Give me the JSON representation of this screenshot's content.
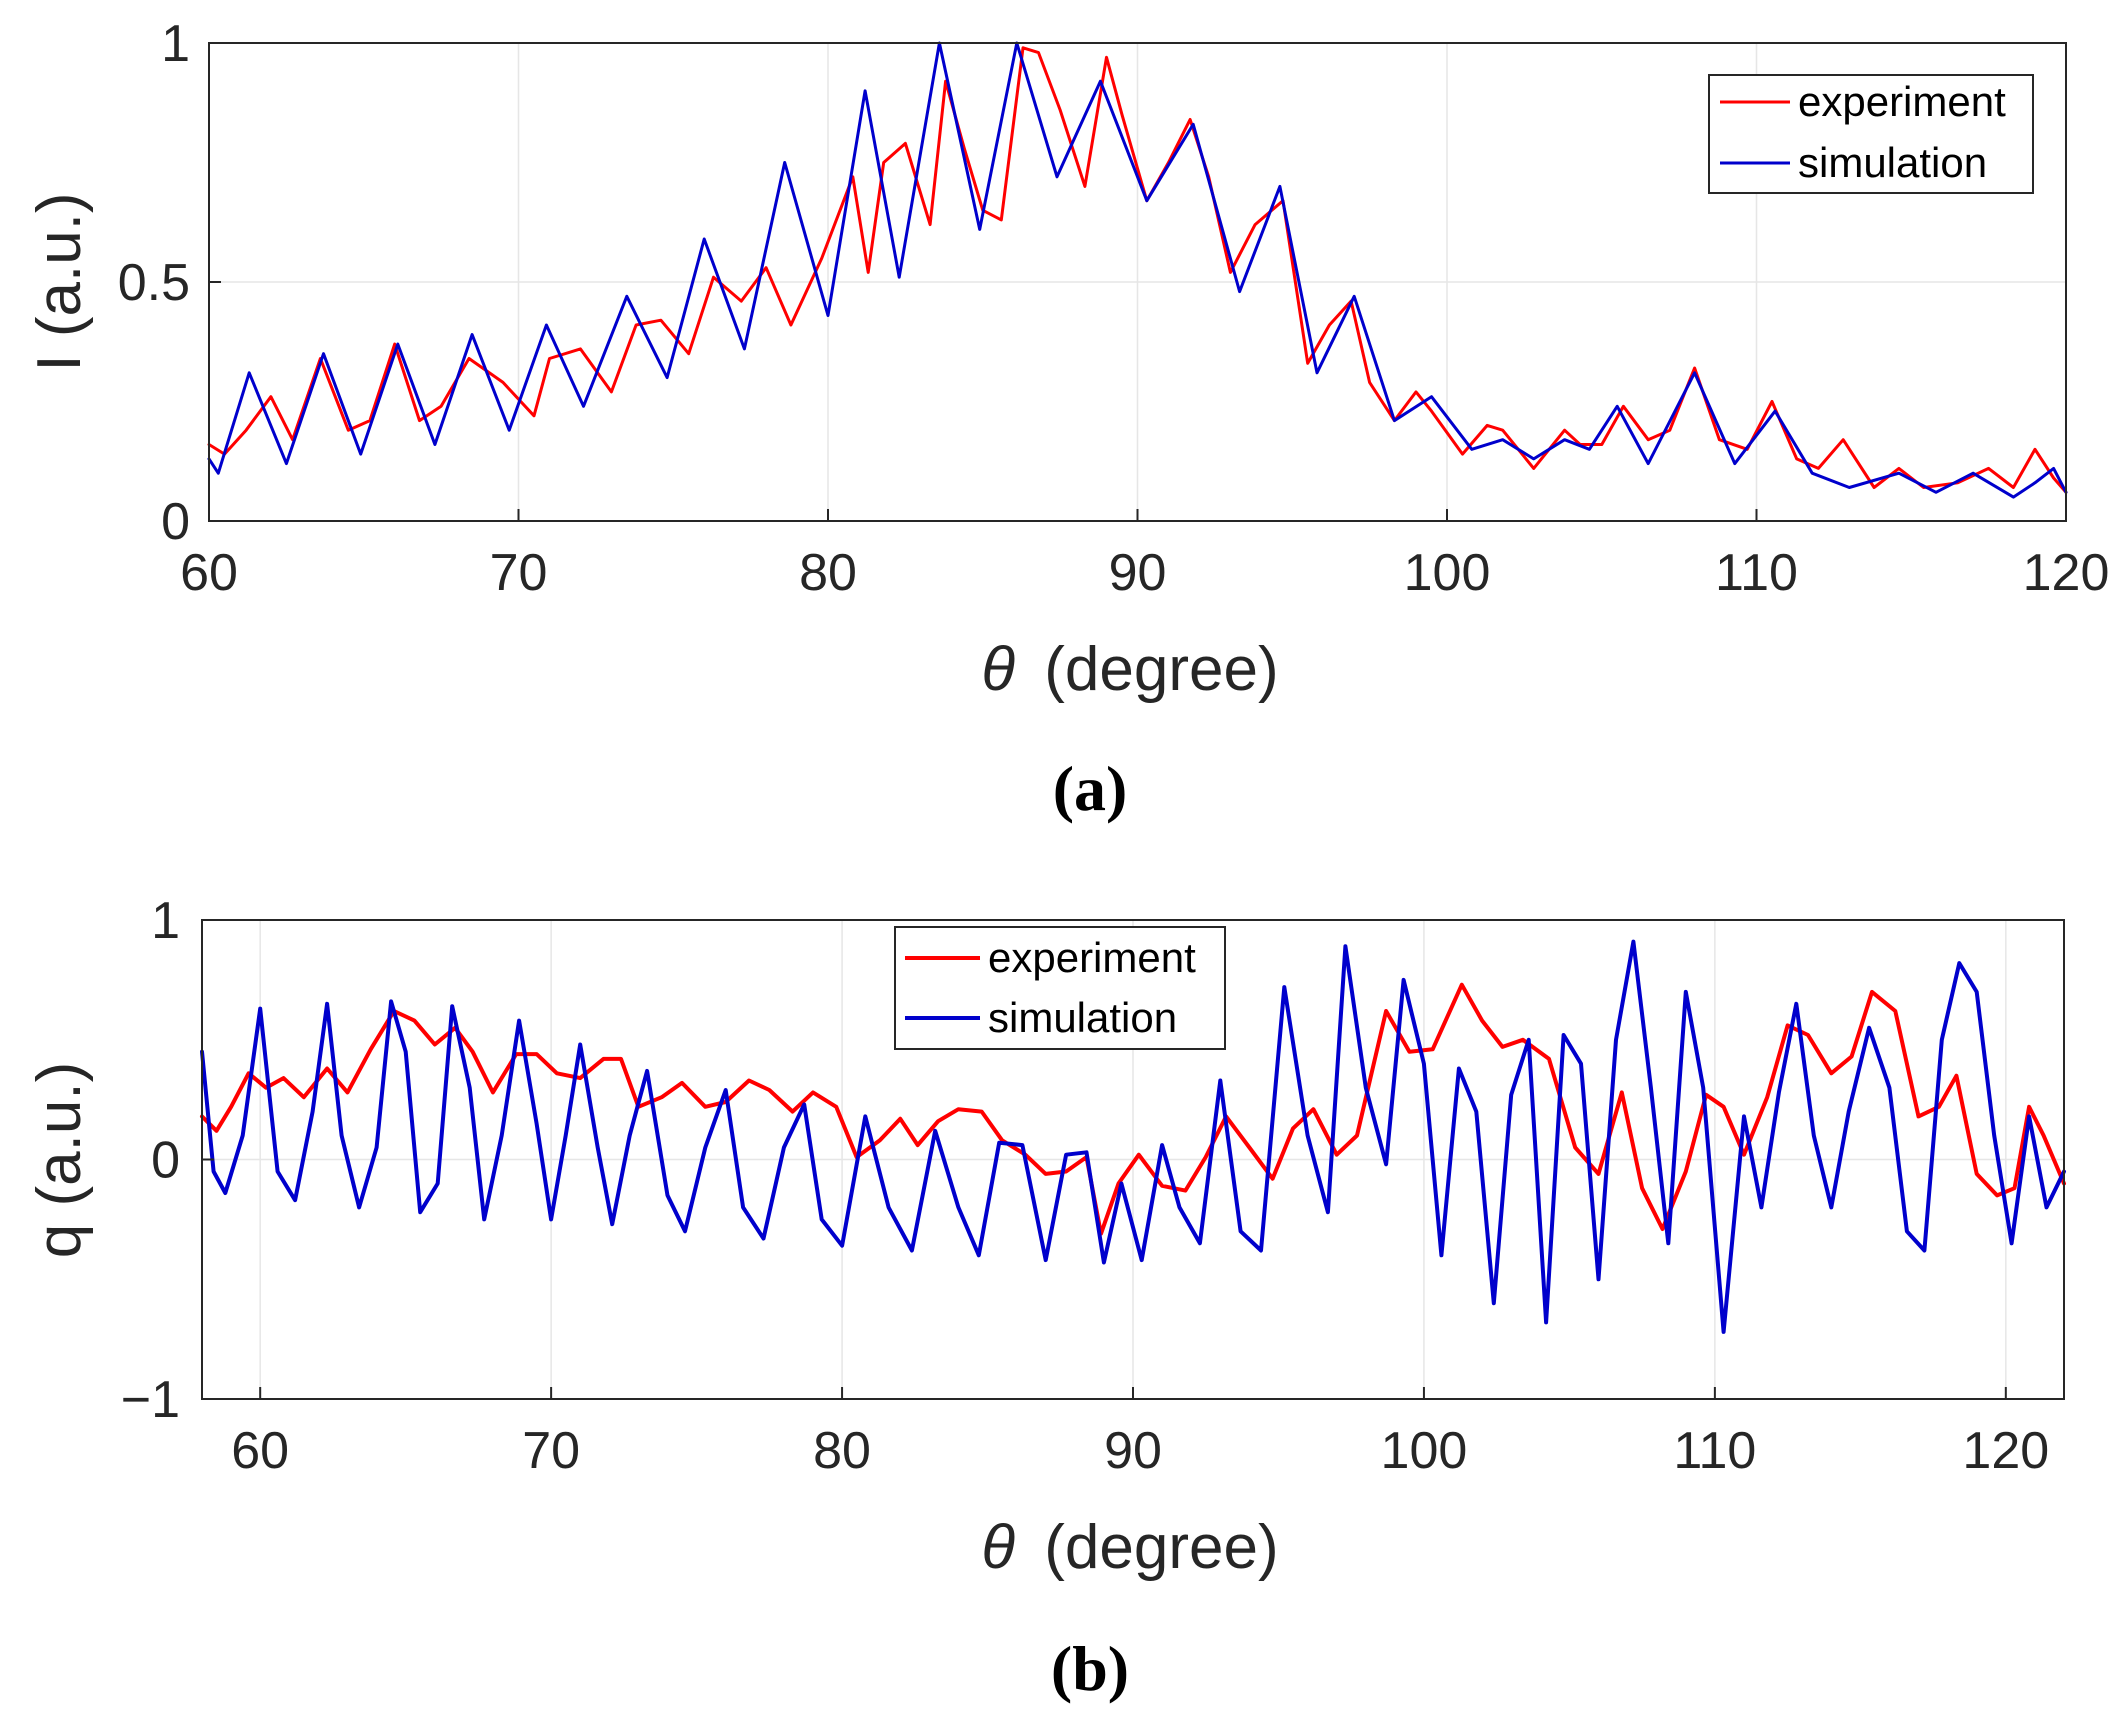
{
  "colors": {
    "experiment": "#ff0000",
    "simulation": "#0000cc",
    "axis": "#262626",
    "grid": "#e6e6e6"
  },
  "chart_data": [
    {
      "id": "a",
      "type": "line",
      "caption": "(a)",
      "xlabel": "(degree)",
      "xlabel_symbol": "θ",
      "ylabel": "I (a.u.)",
      "xlim": [
        60,
        120
      ],
      "ylim": [
        0,
        1
      ],
      "xticks": [
        60,
        70,
        80,
        90,
        100,
        110,
        120
      ],
      "yticks": [
        0,
        0.5,
        1
      ],
      "grid": true,
      "legend": {
        "position": "top-right",
        "entries": [
          "experiment",
          "simulation"
        ]
      },
      "series": [
        {
          "name": "experiment",
          "color": "#ff0000",
          "x": [
            60,
            60.5,
            61.2,
            62,
            62.7,
            63.6,
            64.5,
            65.2,
            66.0,
            66.8,
            67.5,
            68.4,
            69.5,
            70.5,
            71.0,
            72.0,
            73.0,
            73.8,
            74.6,
            75.5,
            76.3,
            77.2,
            78.0,
            78.8,
            79.8,
            80.8,
            81.3,
            81.8,
            82.5,
            83.3,
            83.8,
            84.4,
            85.0,
            85.6,
            86.3,
            86.8,
            87.5,
            88.3,
            89.0,
            89.5,
            90.3,
            91.0,
            91.7,
            92.3,
            93.0,
            93.8,
            94.7,
            95.5,
            96.2,
            96.9,
            97.5,
            98.3,
            99.0,
            99.5,
            100.5,
            101.3,
            101.8,
            102.8,
            103.8,
            104.3,
            105.0,
            105.7,
            106.5,
            107.2,
            108.0,
            108.8,
            109.7,
            110.5,
            111.3,
            112.0,
            112.8,
            113.8,
            114.6,
            115.4,
            116.5,
            117.5,
            118.3,
            119.0,
            119.6,
            120
          ],
          "y": [
            0.16,
            0.14,
            0.19,
            0.26,
            0.17,
            0.34,
            0.19,
            0.21,
            0.37,
            0.21,
            0.24,
            0.34,
            0.29,
            0.22,
            0.34,
            0.36,
            0.27,
            0.41,
            0.42,
            0.35,
            0.51,
            0.46,
            0.53,
            0.41,
            0.55,
            0.72,
            0.52,
            0.75,
            0.79,
            0.62,
            0.92,
            0.78,
            0.65,
            0.63,
            0.99,
            0.98,
            0.86,
            0.7,
            0.97,
            0.85,
            0.67,
            0.75,
            0.84,
            0.72,
            0.52,
            0.62,
            0.67,
            0.33,
            0.41,
            0.46,
            0.29,
            0.21,
            0.27,
            0.23,
            0.14,
            0.2,
            0.19,
            0.11,
            0.19,
            0.16,
            0.16,
            0.24,
            0.17,
            0.19,
            0.32,
            0.17,
            0.15,
            0.25,
            0.13,
            0.11,
            0.17,
            0.07,
            0.11,
            0.07,
            0.08,
            0.11,
            0.07,
            0.15,
            0.09,
            0.06
          ]
        },
        {
          "name": "simulation",
          "color": "#0000cc",
          "x": [
            60,
            60.3,
            61.3,
            62.5,
            63.7,
            64.9,
            66.1,
            67.3,
            68.5,
            69.7,
            70.9,
            72.1,
            73.5,
            74.8,
            76.0,
            77.3,
            78.6,
            80.0,
            81.2,
            82.3,
            83.6,
            84.9,
            86.1,
            87.4,
            88.8,
            90.3,
            91.8,
            93.3,
            94.6,
            95.8,
            97.0,
            98.3,
            99.5,
            100.8,
            101.8,
            102.8,
            103.8,
            104.6,
            105.5,
            106.5,
            108.0,
            109.3,
            110.6,
            111.8,
            113.0,
            114.6,
            115.8,
            117.0,
            118.3,
            119.0,
            119.6,
            120
          ],
          "y": [
            0.13,
            0.1,
            0.31,
            0.12,
            0.35,
            0.14,
            0.37,
            0.16,
            0.39,
            0.19,
            0.41,
            0.24,
            0.47,
            0.3,
            0.59,
            0.36,
            0.75,
            0.43,
            0.9,
            0.51,
            1.0,
            0.61,
            1.0,
            0.72,
            0.92,
            0.67,
            0.83,
            0.48,
            0.7,
            0.31,
            0.47,
            0.21,
            0.26,
            0.15,
            0.17,
            0.13,
            0.17,
            0.15,
            0.24,
            0.12,
            0.31,
            0.12,
            0.23,
            0.1,
            0.07,
            0.1,
            0.06,
            0.1,
            0.05,
            0.08,
            0.11,
            0.06
          ]
        }
      ]
    },
    {
      "id": "b",
      "type": "line",
      "caption": "(b)",
      "xlabel": "(degree)",
      "xlabel_symbol": "θ",
      "ylabel": "q (a.u.)",
      "xlim": [
        58,
        122
      ],
      "ylim": [
        -1,
        1
      ],
      "xticks": [
        60,
        70,
        80,
        90,
        100,
        110,
        120
      ],
      "yticks": [
        -1,
        0,
        1
      ],
      "ytick_labels": [
        "−1",
        "0",
        "1"
      ],
      "grid": true,
      "legend": {
        "position": "top-center",
        "entries": [
          "experiment",
          "simulation"
        ]
      },
      "series": [
        {
          "name": "experiment",
          "color": "#ff0000",
          "x": [
            58,
            58.5,
            59.0,
            59.6,
            60.2,
            60.8,
            61.5,
            62.3,
            63.0,
            63.8,
            64.6,
            65.3,
            66.0,
            66.7,
            67.3,
            68.0,
            68.8,
            69.5,
            70.2,
            71.0,
            71.8,
            72.4,
            73.0,
            73.8,
            74.5,
            75.3,
            76.0,
            76.8,
            77.5,
            78.3,
            79.0,
            79.8,
            80.5,
            81.3,
            82.0,
            82.6,
            83.3,
            84.0,
            84.8,
            85.5,
            86.3,
            87.0,
            87.7,
            88.4,
            88.9,
            89.5,
            90.2,
            91.0,
            91.8,
            92.5,
            93.2,
            94.0,
            94.8,
            95.5,
            96.2,
            97.0,
            97.7,
            98.7,
            99.5,
            100.3,
            101.3,
            102.0,
            102.7,
            103.4,
            104.3,
            105.2,
            106.0,
            106.8,
            107.5,
            108.2,
            109.0,
            109.7,
            110.3,
            111.0,
            111.8,
            112.5,
            113.2,
            114.0,
            114.7,
            115.4,
            116.2,
            117.0,
            117.7,
            118.3,
            119.0,
            119.7,
            120.3,
            120.8,
            121.3,
            122
          ],
          "y": [
            0.18,
            0.12,
            0.22,
            0.36,
            0.3,
            0.34,
            0.26,
            0.38,
            0.28,
            0.46,
            0.62,
            0.58,
            0.48,
            0.55,
            0.45,
            0.28,
            0.44,
            0.44,
            0.36,
            0.34,
            0.42,
            0.42,
            0.22,
            0.26,
            0.32,
            0.22,
            0.24,
            0.33,
            0.29,
            0.2,
            0.28,
            0.22,
            0.01,
            0.08,
            0.17,
            0.06,
            0.16,
            0.21,
            0.2,
            0.08,
            0.02,
            -0.06,
            -0.05,
            0.01,
            -0.31,
            -0.1,
            0.02,
            -0.11,
            -0.13,
            0.01,
            0.18,
            0.05,
            -0.08,
            0.13,
            0.21,
            0.02,
            0.1,
            0.62,
            0.45,
            0.46,
            0.73,
            0.58,
            0.47,
            0.5,
            0.42,
            0.05,
            -0.06,
            0.28,
            -0.12,
            -0.29,
            -0.05,
            0.27,
            0.22,
            0.02,
            0.26,
            0.56,
            0.52,
            0.36,
            0.43,
            0.7,
            0.62,
            0.18,
            0.22,
            0.35,
            -0.06,
            -0.15,
            -0.12,
            0.22,
            0.1,
            -0.1
          ]
        },
        {
          "name": "simulation",
          "color": "#0000cc",
          "x": [
            58,
            58.4,
            58.8,
            59.4,
            60.0,
            60.6,
            61.2,
            61.8,
            62.3,
            62.8,
            63.4,
            64.0,
            64.5,
            65.0,
            65.5,
            66.1,
            66.6,
            67.2,
            67.7,
            68.3,
            68.9,
            69.5,
            70.0,
            70.5,
            71.0,
            71.6,
            72.1,
            72.7,
            73.3,
            74.0,
            74.6,
            75.3,
            76.0,
            76.6,
            77.3,
            78.0,
            78.7,
            79.3,
            80.0,
            80.8,
            81.6,
            82.4,
            83.2,
            84.0,
            84.7,
            85.4,
            86.2,
            87.0,
            87.7,
            88.4,
            89.0,
            89.6,
            90.3,
            91.0,
            91.6,
            92.3,
            93.0,
            93.7,
            94.4,
            95.2,
            96.0,
            96.7,
            97.3,
            98.0,
            98.7,
            99.3,
            100.0,
            100.6,
            101.2,
            101.8,
            102.4,
            103.0,
            103.6,
            104.2,
            104.8,
            105.4,
            106.0,
            106.6,
            107.2,
            107.8,
            108.4,
            109.0,
            109.6,
            110.3,
            111.0,
            111.6,
            112.2,
            112.8,
            113.4,
            114.0,
            114.6,
            115.3,
            116.0,
            116.6,
            117.2,
            117.8,
            118.4,
            119.0,
            119.6,
            120.2,
            120.8,
            121.4,
            122
          ],
          "y": [
            0.45,
            -0.05,
            -0.14,
            0.1,
            0.63,
            -0.05,
            -0.17,
            0.2,
            0.65,
            0.1,
            -0.2,
            0.05,
            0.66,
            0.45,
            -0.22,
            -0.1,
            0.64,
            0.3,
            -0.25,
            0.1,
            0.58,
            0.15,
            -0.25,
            0.1,
            0.48,
            0.05,
            -0.27,
            0.1,
            0.37,
            -0.15,
            -0.3,
            0.05,
            0.29,
            -0.2,
            -0.33,
            0.05,
            0.23,
            -0.25,
            -0.36,
            0.18,
            -0.2,
            -0.38,
            0.12,
            -0.2,
            -0.4,
            0.07,
            0.06,
            -0.42,
            0.02,
            0.03,
            -0.43,
            -0.1,
            -0.42,
            0.06,
            -0.2,
            -0.35,
            0.33,
            -0.3,
            -0.38,
            0.72,
            0.1,
            -0.22,
            0.89,
            0.3,
            -0.02,
            0.75,
            0.4,
            -0.4,
            0.38,
            0.2,
            -0.6,
            0.27,
            0.5,
            -0.68,
            0.52,
            0.4,
            -0.5,
            0.5,
            0.91,
            0.3,
            -0.35,
            0.7,
            0.3,
            -0.72,
            0.18,
            -0.2,
            0.28,
            0.65,
            0.1,
            -0.2,
            0.2,
            0.55,
            0.3,
            -0.3,
            -0.38,
            0.5,
            0.82,
            0.7,
            0.1,
            -0.35,
            0.18,
            -0.2,
            -0.05
          ]
        }
      ]
    }
  ]
}
